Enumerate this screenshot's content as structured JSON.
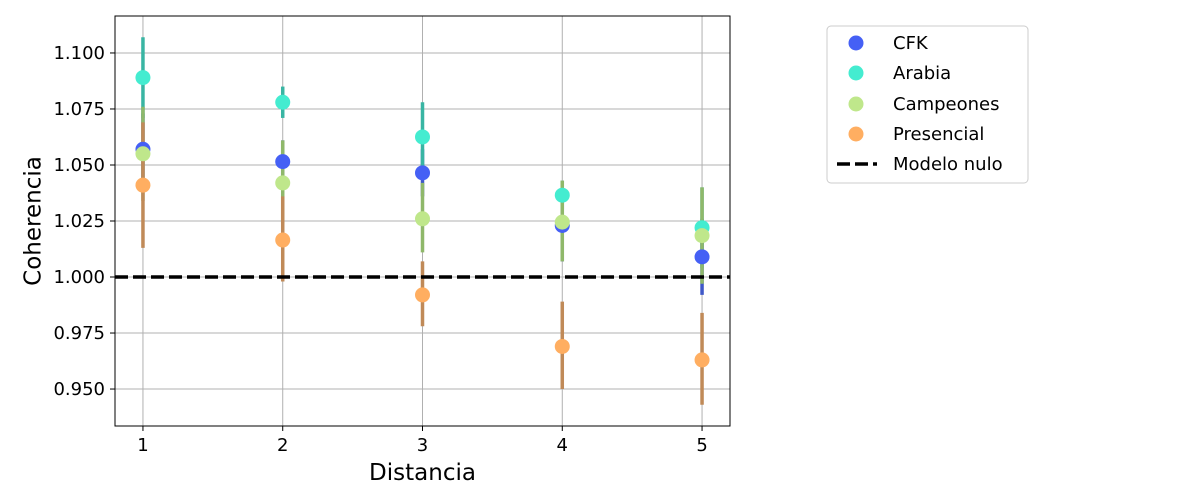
{
  "chart_data": {
    "type": "scatter",
    "title": "",
    "xlabel": "Distancia",
    "ylabel": "Coherencia",
    "x": [
      1,
      2,
      3,
      4,
      5
    ],
    "xlim": [
      0.8,
      5.2
    ],
    "ylim": [
      0.9335,
      1.1165
    ],
    "xticks": [
      1,
      2,
      3,
      4,
      5
    ],
    "xtick_labels": [
      "1",
      "2",
      "3",
      "4",
      "5"
    ],
    "yticks": [
      0.95,
      0.975,
      1.0,
      1.025,
      1.05,
      1.075,
      1.1
    ],
    "ytick_labels": [
      "0.950",
      "0.975",
      "1.000",
      "1.025",
      "1.050",
      "1.075",
      "1.100"
    ],
    "grid": true,
    "legend": "outside-right-top",
    "reference_line": {
      "name": "Modelo nulo",
      "y": 1.0,
      "style": "dashed",
      "color": "#000000"
    },
    "series": [
      {
        "name": "CFK",
        "color": "#4560f5",
        "y": [
          1.057,
          1.0515,
          1.0465,
          1.023,
          1.009
        ],
        "err_low": [
          1.041,
          1.041,
          1.036,
          1.007,
          0.992
        ],
        "err_high": [
          1.073,
          1.061,
          1.057,
          1.039,
          1.026
        ]
      },
      {
        "name": "Arabia",
        "color": "#44ecd0",
        "y": [
          1.089,
          1.078,
          1.0625,
          1.0365,
          1.022
        ],
        "err_low": [
          1.071,
          1.071,
          1.047,
          1.03,
          1.004
        ],
        "err_high": [
          1.107,
          1.085,
          1.078,
          1.043,
          1.04
        ]
      },
      {
        "name": "Campeones",
        "color": "#bfe78b",
        "y": [
          1.055,
          1.042,
          1.026,
          1.0245,
          1.0185
        ],
        "err_low": [
          1.034,
          1.024,
          1.011,
          1.007,
          0.997
        ],
        "err_high": [
          1.076,
          1.061,
          1.042,
          1.043,
          1.04
        ]
      },
      {
        "name": "Presencial",
        "color": "#ffae61",
        "y": [
          1.041,
          1.0165,
          0.992,
          0.969,
          0.963
        ],
        "err_low": [
          1.013,
          0.998,
          0.978,
          0.95,
          0.943
        ],
        "err_high": [
          1.069,
          1.036,
          1.007,
          0.989,
          0.984
        ]
      }
    ]
  }
}
